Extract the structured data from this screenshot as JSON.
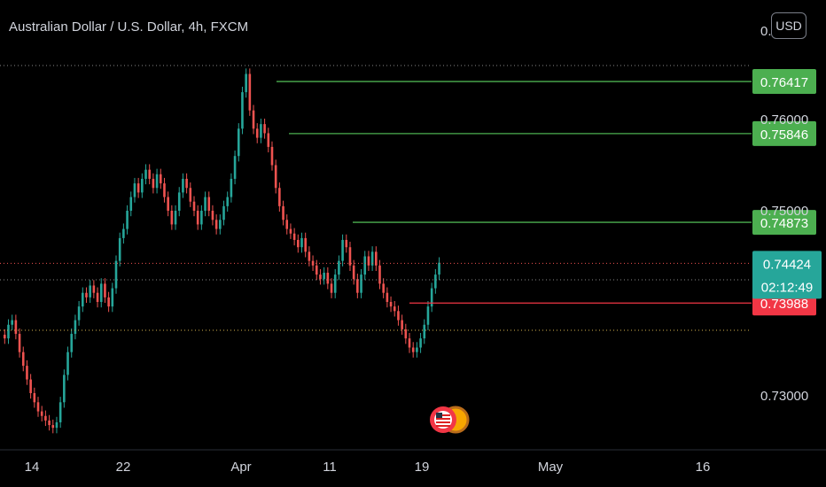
{
  "header": {
    "title": "Australian Dollar / U.S. Dollar, 4h, FXCM",
    "currency_button": "USD"
  },
  "colors": {
    "background": "#000000",
    "up": "#26a69a",
    "down": "#ef5350",
    "resistance": "#4caf50",
    "support": "#f23645",
    "current": "#26a69a",
    "axis_text": "#d1d4dc"
  },
  "chart_data": {
    "type": "candlestick",
    "symbol": "Australian Dollar / U.S. Dollar",
    "interval": "4h",
    "source": "FXCM",
    "y_tick_labels": [
      "0.7",
      "0.76000",
      "0.75000",
      "0.73000"
    ],
    "x_tick_labels": [
      "14",
      "22",
      "Apr",
      "11",
      "19",
      "May",
      "16"
    ],
    "price_lines": [
      {
        "value": 0.76417,
        "label": "0.76417",
        "kind": "resistance"
      },
      {
        "value": 0.75846,
        "label": "0.75846",
        "kind": "resistance"
      },
      {
        "value": 0.74873,
        "label": "0.74873",
        "kind": "resistance"
      },
      {
        "value": 0.73988,
        "label": "0.73988",
        "kind": "support"
      }
    ],
    "last_price": {
      "value": 0.74424,
      "label": "0.74424",
      "countdown": "02:12:49"
    },
    "events": [
      {
        "type": "economic-event",
        "flag": "US"
      }
    ],
    "closes": [
      0.736,
      0.7375,
      0.738,
      0.7365,
      0.7345,
      0.733,
      0.7315,
      0.73,
      0.729,
      0.728,
      0.7275,
      0.727,
      0.7265,
      0.7262,
      0.7268,
      0.729,
      0.732,
      0.7345,
      0.7365,
      0.738,
      0.7395,
      0.741,
      0.7405,
      0.7418,
      0.741,
      0.74,
      0.742,
      0.7405,
      0.7395,
      0.7415,
      0.7445,
      0.747,
      0.748,
      0.75,
      0.7515,
      0.753,
      0.752,
      0.7535,
      0.7545,
      0.7535,
      0.7525,
      0.754,
      0.753,
      0.7515,
      0.75,
      0.7485,
      0.75,
      0.752,
      0.7535,
      0.7525,
      0.751,
      0.75,
      0.7485,
      0.75,
      0.7515,
      0.75,
      0.749,
      0.748,
      0.749,
      0.7505,
      0.7515,
      0.7535,
      0.756,
      0.759,
      0.763,
      0.765,
      0.761,
      0.759,
      0.758,
      0.7595,
      0.7585,
      0.757,
      0.755,
      0.7525,
      0.7505,
      0.749,
      0.748,
      0.7475,
      0.7468,
      0.746,
      0.747,
      0.7455,
      0.7445,
      0.744,
      0.743,
      0.7425,
      0.7432,
      0.742,
      0.741,
      0.743,
      0.7445,
      0.7468,
      0.746,
      0.744,
      0.7425,
      0.741,
      0.743,
      0.745,
      0.744,
      0.7455,
      0.744,
      0.742,
      0.741,
      0.74,
      0.7395,
      0.739,
      0.738,
      0.737,
      0.736,
      0.735,
      0.7345,
      0.735,
      0.736,
      0.7375,
      0.7395,
      0.7415,
      0.743,
      0.7443
    ]
  }
}
